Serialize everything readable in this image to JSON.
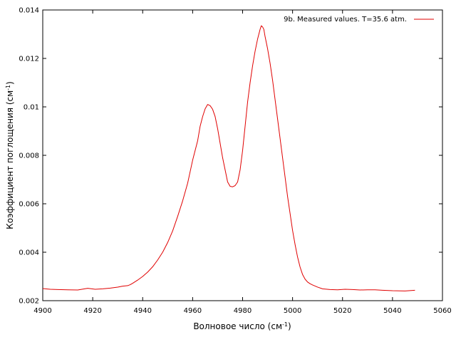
{
  "chart_data": {
    "type": "line",
    "xlabel": "Волновое число (см",
    "xlabel_sup": "-1",
    "xlabel_tail": ")",
    "ylabel": "Коэффициент поглощения (см",
    "ylabel_sup": "-1",
    "ylabel_tail": ")",
    "xlim": [
      4900,
      5060
    ],
    "ylim": [
      0.002,
      0.014
    ],
    "xticks": [
      "4900",
      "4920",
      "4940",
      "4960",
      "4980",
      "5000",
      "5020",
      "5040",
      "5060"
    ],
    "xtick_values": [
      4900,
      4920,
      4940,
      4960,
      4980,
      5000,
      5020,
      5040,
      5060
    ],
    "yticks": [
      "0.002",
      "0.004",
      "0.006",
      "0.008",
      "0.01",
      "0.012",
      "0.014"
    ],
    "ytick_values": [
      0.002,
      0.004,
      0.006,
      0.008,
      0.01,
      0.012,
      0.014
    ],
    "grid": false,
    "legend_position": "top-right",
    "series": [
      {
        "name": "9b. Measured values. T=35.6 atm.",
        "color": "#e00000",
        "x": [
          4900,
          4903,
          4906,
          4910,
          4914,
          4918,
          4921,
          4924,
          4927,
          4930,
          4932,
          4934,
          4935,
          4936,
          4938,
          4940,
          4942,
          4944,
          4946,
          4948,
          4950,
          4952,
          4954,
          4956,
          4958,
          4960,
          4962,
          4963,
          4964,
          4965,
          4966,
          4967,
          4968,
          4969,
          4970,
          4971,
          4972,
          4973,
          4974,
          4975,
          4976,
          4977,
          4978,
          4979,
          4980,
          4981,
          4982,
          4983,
          4984,
          4985,
          4986,
          4987,
          4987.5,
          4988,
          4988.5,
          4989,
          4990,
          4991,
          4992,
          4993,
          4994,
          4995,
          4996,
          4997,
          4998,
          4999,
          5000,
          5001,
          5002,
          5003,
          5004,
          5005,
          5006,
          5007,
          5008,
          5010,
          5012,
          5015,
          5018,
          5021,
          5024,
          5027,
          5030,
          5033,
          5036,
          5040,
          5045,
          5049
        ],
        "y": [
          0.0025,
          0.00247,
          0.00246,
          0.00245,
          0.00244,
          0.00251,
          0.00247,
          0.00249,
          0.00252,
          0.00256,
          0.0026,
          0.00262,
          0.00266,
          0.00272,
          0.00285,
          0.003,
          0.00318,
          0.0034,
          0.00368,
          0.004,
          0.0044,
          0.00488,
          0.00548,
          0.00612,
          0.00685,
          0.0078,
          0.0086,
          0.0092,
          0.0096,
          0.00992,
          0.0101,
          0.01005,
          0.0099,
          0.0096,
          0.0091,
          0.0085,
          0.0079,
          0.0074,
          0.0069,
          0.00672,
          0.0067,
          0.00675,
          0.0069,
          0.0074,
          0.0082,
          0.0092,
          0.0102,
          0.011,
          0.0117,
          0.0123,
          0.0128,
          0.0132,
          0.01335,
          0.0133,
          0.0132,
          0.0129,
          0.0124,
          0.0118,
          0.0111,
          0.0103,
          0.0095,
          0.0087,
          0.0079,
          0.0071,
          0.0063,
          0.0056,
          0.0049,
          0.00432,
          0.0038,
          0.00339,
          0.00308,
          0.00289,
          0.00277,
          0.0027,
          0.00265,
          0.00256,
          0.00249,
          0.00246,
          0.00245,
          0.00247,
          0.00246,
          0.00244,
          0.00245,
          0.00245,
          0.00243,
          0.00241,
          0.0024,
          0.00243
        ]
      }
    ]
  }
}
